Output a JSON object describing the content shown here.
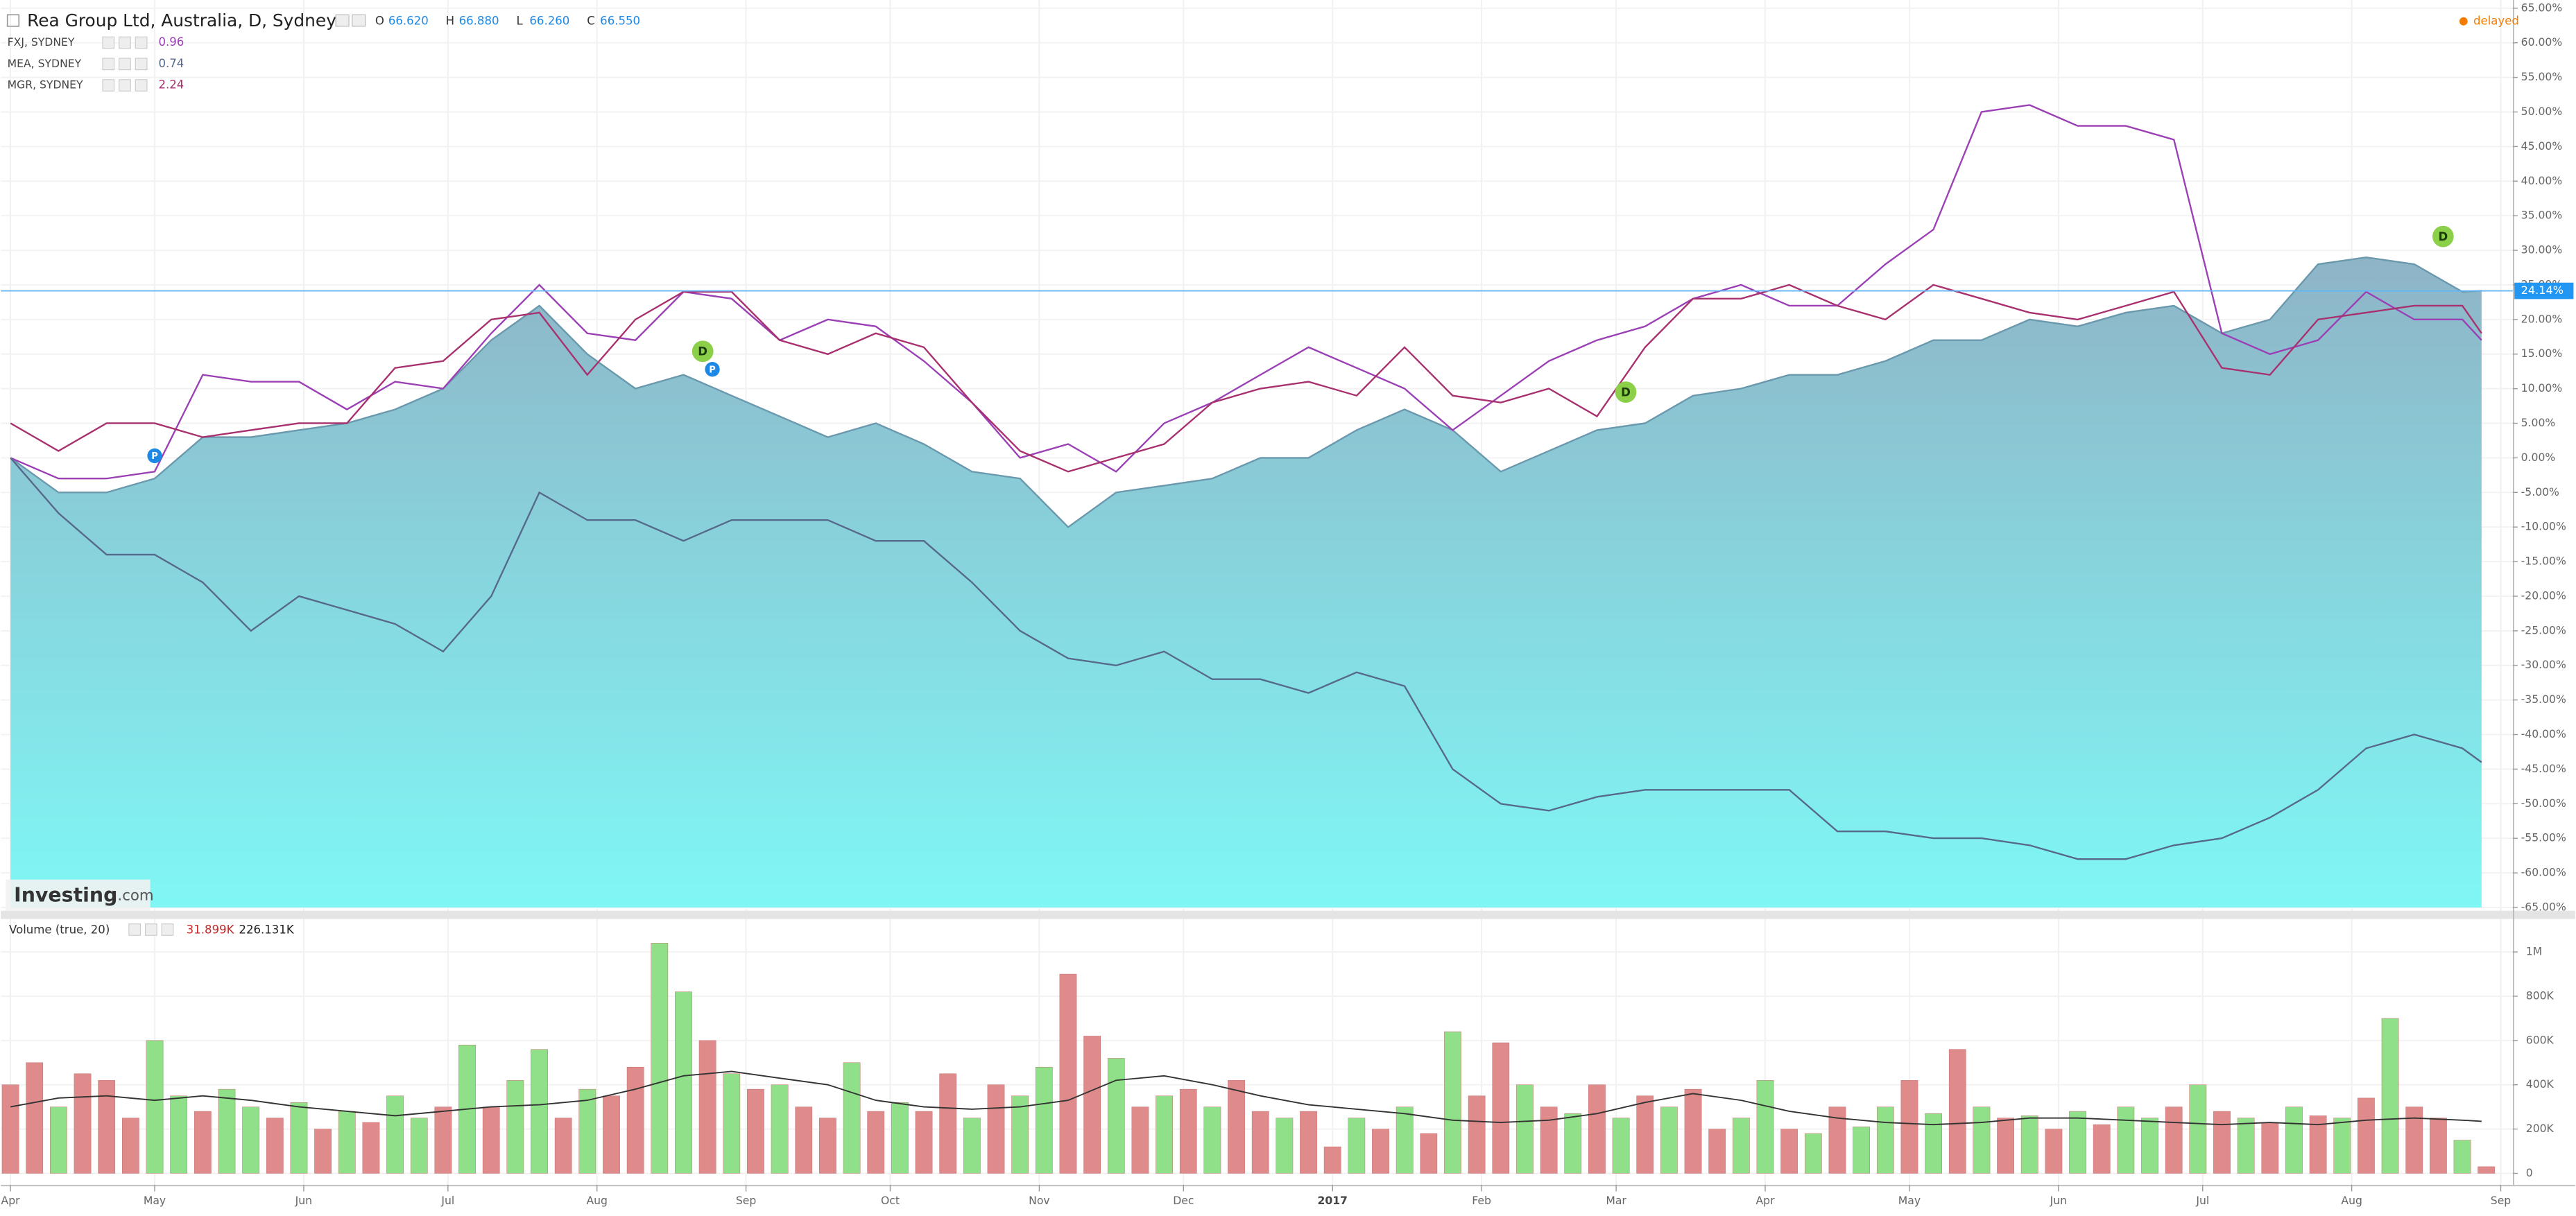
{
  "header": {
    "title": "Rea Group Ltd, Australia, D, Sydney",
    "ohlc": [
      {
        "key": "O",
        "value": "66.620"
      },
      {
        "key": "H",
        "value": "66.880"
      },
      {
        "key": "L",
        "value": "66.260"
      },
      {
        "key": "C",
        "value": "66.550"
      }
    ],
    "status": "delayed"
  },
  "logo": {
    "brand": "Investing",
    "suffix": ".com"
  },
  "chart_data": [
    {
      "type": "area",
      "title": "Rea Group Ltd, Australia, D, Sydney",
      "x": [
        0,
        10,
        20,
        30,
        40,
        50,
        60,
        70,
        80,
        90,
        100,
        110,
        120,
        130,
        140,
        150,
        160,
        170,
        180,
        190,
        200,
        210,
        220,
        230,
        240,
        250,
        260,
        270,
        280,
        290,
        300,
        310,
        320,
        330,
        340,
        350,
        360,
        370,
        380,
        390,
        400,
        410,
        420,
        430,
        440,
        450,
        460,
        470,
        480,
        490,
        500,
        510,
        514
      ],
      "xlim": [
        -2,
        520.5
      ],
      "xticks": [
        {
          "value": 0,
          "label": "Apr"
        },
        {
          "value": 30,
          "label": "May"
        },
        {
          "value": 61,
          "label": "Jun"
        },
        {
          "value": 91,
          "label": "Jul"
        },
        {
          "value": 122,
          "label": "Aug"
        },
        {
          "value": 153,
          "label": "Sep"
        },
        {
          "value": 183,
          "label": "Oct"
        },
        {
          "value": 214,
          "label": "Nov"
        },
        {
          "value": 244,
          "label": "Dec"
        },
        {
          "value": 275,
          "label": "2017"
        },
        {
          "value": 306,
          "label": "Feb"
        },
        {
          "value": 334,
          "label": "Mar"
        },
        {
          "value": 365,
          "label": "Apr"
        },
        {
          "value": 395,
          "label": "May"
        },
        {
          "value": 426,
          "label": "Jun"
        },
        {
          "value": 456,
          "label": "Jul"
        },
        {
          "value": 487,
          "label": "Aug"
        },
        {
          "value": 518,
          "label": "Sep"
        }
      ],
      "ylim": [
        -65,
        65
      ],
      "yticks": [
        {
          "value": 65,
          "label": "65.00%"
        },
        {
          "value": 60,
          "label": "60.00%"
        },
        {
          "value": 55,
          "label": "55.00%"
        },
        {
          "value": 50,
          "label": "50.00%"
        },
        {
          "value": 45,
          "label": "45.00%"
        },
        {
          "value": 40,
          "label": "40.00%"
        },
        {
          "value": 35,
          "label": "35.00%"
        },
        {
          "value": 30,
          "label": "30.00%"
        },
        {
          "value": 25,
          "label": "25.00%"
        },
        {
          "value": 20,
          "label": "20.00%"
        },
        {
          "value": 15,
          "label": "15.00%"
        },
        {
          "value": 10,
          "label": "10.00%"
        },
        {
          "value": 5,
          "label": "5.00%"
        },
        {
          "value": 0,
          "label": "0.00%"
        },
        {
          "value": -5,
          "label": "-5.00%"
        },
        {
          "value": -10,
          "label": "-10.00%"
        },
        {
          "value": -15,
          "label": "-15.00%"
        },
        {
          "value": -20,
          "label": "-20.00%"
        },
        {
          "value": -25,
          "label": "-25.00%"
        },
        {
          "value": -30,
          "label": "-30.00%"
        },
        {
          "value": -35,
          "label": "-35.00%"
        },
        {
          "value": -40,
          "label": "-40.00%"
        },
        {
          "value": -45,
          "label": "-45.00%"
        },
        {
          "value": -50,
          "label": "-50.00%"
        },
        {
          "value": -55,
          "label": "-55.00%"
        },
        {
          "value": -60,
          "label": "-60.00%"
        },
        {
          "value": -65,
          "label": "-65.00%"
        }
      ],
      "grid": true,
      "series": [
        {
          "color": "#6a98ac",
          "values": [
            0,
            -5,
            -5,
            -3,
            3,
            3,
            4,
            5,
            7,
            10,
            17,
            22,
            15,
            10,
            12,
            9,
            6,
            3,
            5,
            2,
            -2,
            -3,
            -10,
            -5,
            -4,
            -3,
            0,
            0,
            4,
            7,
            4,
            -2,
            1,
            4,
            5,
            9,
            10,
            12,
            12,
            14,
            17,
            17,
            20,
            19,
            21,
            22,
            18,
            20,
            28,
            29,
            28,
            24,
            24.14
          ]
        },
        {
          "name": "FXJ, SYDNEY",
          "legend_value": 0.96,
          "color": "#9b3fb5",
          "values": [
            0,
            -3,
            -3,
            -2,
            12,
            11,
            11,
            7,
            11,
            10,
            18,
            25,
            18,
            17,
            24,
            23,
            17,
            20,
            19,
            14,
            8,
            0,
            2,
            -2,
            5,
            8,
            12,
            16,
            13,
            10,
            4,
            9,
            14,
            17,
            19,
            23,
            25,
            22,
            22,
            28,
            33,
            50,
            51,
            48,
            48,
            46,
            18,
            15,
            17,
            24,
            20,
            20,
            17
          ]
        },
        {
          "name": "MEA, SYDNEY",
          "legend_value": 0.74,
          "color": "#56698a",
          "values": [
            0,
            -8,
            -14,
            -14,
            -18,
            -25,
            -20,
            -22,
            -24,
            -28,
            -20,
            -5,
            -9,
            -9,
            -12,
            -9,
            -9,
            -9,
            -12,
            -12,
            -18,
            -25,
            -29,
            -30,
            -28,
            -32,
            -32,
            -34,
            -31,
            -33,
            -45,
            -50,
            -51,
            -49,
            -48,
            -48,
            -48,
            -48,
            -54,
            -54,
            -55,
            -55,
            -56,
            -58,
            -58,
            -56,
            -55,
            -52,
            -48,
            -42,
            -40,
            -42,
            -44
          ]
        },
        {
          "name": "MGR, SYDNEY",
          "legend_value": 2.24,
          "color": "#a8306e",
          "values": [
            5,
            1,
            5,
            5,
            3,
            4,
            5,
            5,
            13,
            14,
            20,
            21,
            12,
            20,
            24,
            24,
            17,
            15,
            18,
            16,
            8,
            1,
            -2,
            0,
            2,
            8,
            10,
            11,
            9,
            16,
            9,
            8,
            10,
            6,
            16,
            23,
            23,
            25,
            22,
            20,
            25,
            23,
            21,
            20,
            22,
            24,
            13,
            12,
            20,
            21,
            22,
            22,
            18
          ]
        }
      ],
      "last_value": {
        "value": 24.14,
        "label": "24.14%"
      },
      "events": [
        {
          "label": "P",
          "x": 30,
          "y": 0.3
        },
        {
          "label": "D",
          "x": 144,
          "y": 15.4
        },
        {
          "label": "P",
          "x": 146,
          "y": 12.8
        },
        {
          "label": "D",
          "x": 336,
          "y": 9.5
        },
        {
          "label": "D",
          "x": 506,
          "y": 32
        }
      ],
      "event_colors": {
        "D": "#8cd04a",
        "P": "#1e88e5"
      }
    },
    {
      "type": "bar",
      "title": "Volume (true, 20)",
      "last_volume": {
        "value": 31899,
        "label": "31.899K"
      },
      "last_average": {
        "value": 226131,
        "label": "226.131K"
      },
      "x": [
        0,
        5,
        10,
        15,
        20,
        25,
        30,
        35,
        40,
        45,
        50,
        55,
        60,
        65,
        70,
        75,
        80,
        85,
        90,
        95,
        100,
        105,
        110,
        115,
        120,
        125,
        130,
        135,
        140,
        145,
        150,
        155,
        160,
        165,
        170,
        175,
        180,
        185,
        190,
        195,
        200,
        205,
        210,
        215,
        220,
        225,
        230,
        235,
        240,
        245,
        250,
        255,
        260,
        265,
        270,
        275,
        280,
        285,
        290,
        295,
        300,
        305,
        310,
        315,
        320,
        325,
        330,
        335,
        340,
        345,
        350,
        355,
        360,
        365,
        370,
        375,
        380,
        385,
        390,
        395,
        400,
        405,
        410,
        415,
        420,
        425,
        430,
        435,
        440,
        445,
        450,
        455,
        460,
        465,
        470,
        475,
        480,
        485,
        490,
        495,
        500,
        505,
        510,
        515
      ],
      "values": [
        400000,
        500000,
        300000,
        450000,
        420000,
        250000,
        600000,
        350000,
        280000,
        380000,
        300000,
        250000,
        320000,
        200000,
        280000,
        230000,
        350000,
        250000,
        300000,
        580000,
        300000,
        420000,
        560000,
        250000,
        380000,
        350000,
        480000,
        1040000,
        820000,
        600000,
        450000,
        380000,
        400000,
        300000,
        250000,
        500000,
        280000,
        320000,
        280000,
        450000,
        250000,
        400000,
        350000,
        480000,
        900000,
        620000,
        520000,
        300000,
        350000,
        380000,
        300000,
        420000,
        280000,
        250000,
        280000,
        120000,
        250000,
        200000,
        300000,
        180000,
        640000,
        350000,
        590000,
        400000,
        300000,
        270000,
        400000,
        250000,
        350000,
        300000,
        380000,
        200000,
        250000,
        420000,
        200000,
        180000,
        300000,
        210000,
        300000,
        420000,
        270000,
        560000,
        300000,
        250000,
        260000,
        200000,
        280000,
        220000,
        300000,
        250000,
        300000,
        400000,
        280000,
        250000,
        230000,
        300000,
        260000,
        250000,
        340000,
        700000,
        300000,
        250000,
        150000,
        30000
      ],
      "bar_colors": [
        "#e08b8b",
        "#e08b8b",
        "#8fe088",
        "#e08b8b",
        "#e08b8b",
        "#e08b8b",
        "#8fe088",
        "#8fe088",
        "#e08b8b",
        "#8fe088",
        "#8fe088",
        "#e08b8b",
        "#8fe088",
        "#e08b8b",
        "#8fe088",
        "#e08b8b",
        "#8fe088",
        "#8fe088",
        "#e08b8b",
        "#8fe088",
        "#e08b8b",
        "#8fe088",
        "#8fe088",
        "#e08b8b",
        "#8fe088",
        "#e08b8b",
        "#e08b8b",
        "#8fe088",
        "#8fe088",
        "#e08b8b",
        "#8fe088",
        "#e08b8b",
        "#8fe088",
        "#e08b8b",
        "#e08b8b",
        "#8fe088",
        "#e08b8b",
        "#8fe088",
        "#e08b8b",
        "#e08b8b",
        "#8fe088",
        "#e08b8b",
        "#8fe088",
        "#8fe088",
        "#e08b8b",
        "#e08b8b",
        "#8fe088",
        "#e08b8b",
        "#8fe088",
        "#e08b8b",
        "#8fe088",
        "#e08b8b",
        "#e08b8b",
        "#8fe088",
        "#e08b8b",
        "#e08b8b",
        "#8fe088",
        "#e08b8b",
        "#8fe088",
        "#e08b8b",
        "#8fe088",
        "#e08b8b",
        "#e08b8b",
        "#8fe088",
        "#e08b8b",
        "#8fe088",
        "#e08b8b",
        "#8fe088",
        "#e08b8b",
        "#8fe088",
        "#e08b8b",
        "#e08b8b",
        "#8fe088",
        "#8fe088",
        "#e08b8b",
        "#8fe088",
        "#e08b8b",
        "#8fe088",
        "#8fe088",
        "#e08b8b",
        "#8fe088",
        "#e08b8b",
        "#8fe088",
        "#e08b8b",
        "#8fe088",
        "#e08b8b",
        "#8fe088",
        "#e08b8b",
        "#8fe088",
        "#8fe088",
        "#e08b8b",
        "#8fe088",
        "#e08b8b",
        "#8fe088",
        "#e08b8b",
        "#8fe088",
        "#e08b8b",
        "#8fe088",
        "#e08b8b",
        "#8fe088",
        "#e08b8b",
        "#e08b8b",
        "#8fe088",
        "#e08b8b"
      ],
      "ma_x": [
        0,
        10,
        20,
        30,
        40,
        50,
        60,
        70,
        80,
        90,
        100,
        110,
        120,
        130,
        140,
        150,
        160,
        170,
        180,
        190,
        200,
        210,
        220,
        230,
        240,
        250,
        260,
        270,
        280,
        290,
        300,
        310,
        320,
        330,
        340,
        350,
        360,
        370,
        380,
        390,
        400,
        410,
        420,
        430,
        440,
        450,
        460,
        470,
        480,
        490,
        500,
        510,
        514
      ],
      "ma_values": [
        300000,
        340000,
        350000,
        330000,
        350000,
        330000,
        300000,
        280000,
        260000,
        280000,
        300000,
        310000,
        330000,
        380000,
        440000,
        460000,
        430000,
        400000,
        330000,
        300000,
        290000,
        300000,
        330000,
        420000,
        440000,
        400000,
        350000,
        310000,
        290000,
        270000,
        240000,
        230000,
        240000,
        270000,
        320000,
        360000,
        330000,
        280000,
        250000,
        230000,
        220000,
        230000,
        250000,
        250000,
        240000,
        230000,
        220000,
        230000,
        220000,
        240000,
        250000,
        240000,
        235000
      ],
      "ma_color": "#333333",
      "xlim": [
        -2,
        520.5
      ],
      "ylim": [
        0,
        1060000
      ],
      "yticks": [
        0,
        {
          "value": 200000,
          "label": "200K"
        },
        {
          "value": 400000,
          "label": "400K"
        },
        {
          "value": 600000,
          "label": "600K"
        },
        {
          "value": 800000,
          "label": "800K"
        },
        {
          "value": 1000000,
          "label": "1M"
        }
      ],
      "grid": true
    }
  ]
}
